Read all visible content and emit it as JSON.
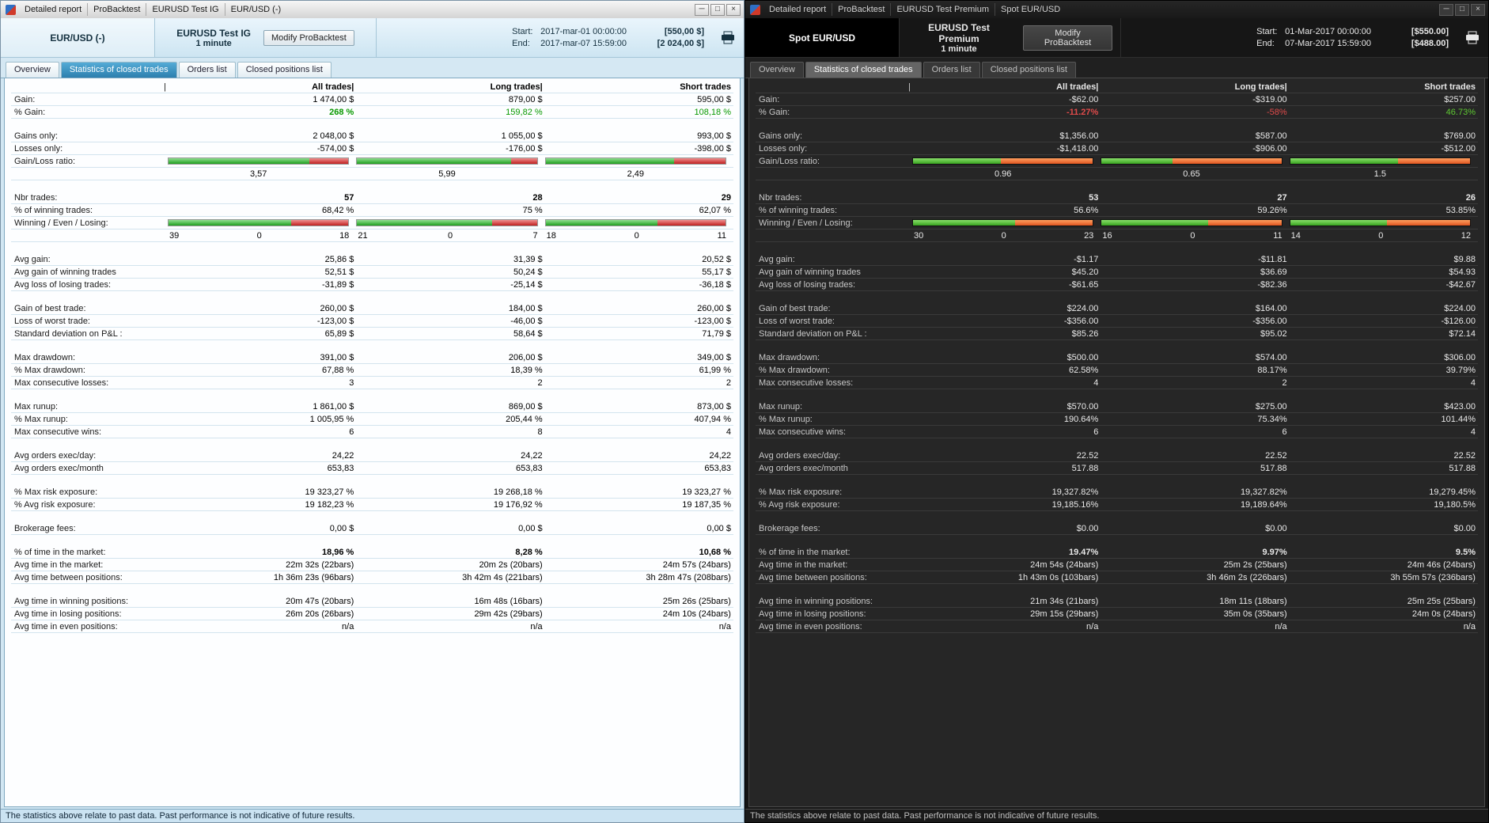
{
  "chrome": {
    "minimize_glyph": "─",
    "maximize_glyph": "□",
    "close_glyph": "×"
  },
  "windows": [
    {
      "theme": "light",
      "titlebar": {
        "items": [
          "Detailed report",
          "ProBacktest",
          "EURUSD Test IG",
          "EUR/USD (-)"
        ]
      },
      "header": {
        "instrument": "EUR/USD (-)",
        "test_name": "EURUSD Test IG",
        "timeframe": "1 minute",
        "modify_button": "Modify ProBacktest",
        "start_label": "Start:",
        "start_date": "2017-mar-01 00:00:00",
        "start_amount": "[550,00 $]",
        "end_label": "End:",
        "end_date": "2017-mar-07 15:59:00",
        "end_amount": "[2 024,00 $]"
      },
      "tabs": [
        {
          "label": "Overview",
          "active": false
        },
        {
          "label": "Statistics of closed trades",
          "active": true
        },
        {
          "label": "Orders list",
          "active": false
        },
        {
          "label": "Closed positions list",
          "active": false
        }
      ],
      "table": {
        "pipe": "|",
        "columns": [
          "All trades|",
          "Long trades|",
          "Short trades"
        ],
        "rows": [
          {
            "l": "Gain:",
            "v": [
              "1 474,00 $",
              "879,00 $",
              "595,00 $"
            ]
          },
          {
            "l": "% Gain:",
            "v": [
              "268 %",
              "159,82 %",
              "108,18 %"
            ],
            "c": [
              "pos b",
              "pos",
              "pos"
            ]
          },
          {
            "t": "gap"
          },
          {
            "l": "Gains only:",
            "v": [
              "2 048,00 $",
              "1 055,00 $",
              "993,00 $"
            ]
          },
          {
            "l": "Losses only:",
            "v": [
              "-574,00 $",
              "-176,00 $",
              "-398,00 $"
            ]
          },
          {
            "l": "Gain/Loss ratio:",
            "t": "ratio",
            "f": [
              0.781,
              0.857,
              0.713
            ],
            "v": [
              "3,57",
              "5,99",
              "2,49"
            ]
          },
          {
            "t": "gap"
          },
          {
            "l": "Nbr trades:",
            "v": [
              "57",
              "28",
              "29"
            ],
            "b": true
          },
          {
            "l": "% of winning trades:",
            "v": [
              "68,42 %",
              "75 %",
              "62,07 %"
            ]
          },
          {
            "l": "Winning / Even / Losing:",
            "t": "wel",
            "f": [
              0.684,
              0.75,
              0.621
            ],
            "w": [
              [
                "39",
                "0",
                "18"
              ],
              [
                "21",
                "0",
                "7"
              ],
              [
                "18",
                "0",
                "11"
              ]
            ]
          },
          {
            "t": "gap"
          },
          {
            "l": "Avg gain:",
            "v": [
              "25,86 $",
              "31,39 $",
              "20,52 $"
            ]
          },
          {
            "l": "Avg gain of winning trades",
            "v": [
              "52,51 $",
              "50,24 $",
              "55,17 $"
            ]
          },
          {
            "l": "Avg loss of losing trades:",
            "v": [
              "-31,89 $",
              "-25,14 $",
              "-36,18 $"
            ]
          },
          {
            "t": "gap"
          },
          {
            "l": "Gain of best trade:",
            "v": [
              "260,00 $",
              "184,00 $",
              "260,00 $"
            ]
          },
          {
            "l": "Loss of worst trade:",
            "v": [
              "-123,00 $",
              "-46,00 $",
              "-123,00 $"
            ]
          },
          {
            "l": "Standard deviation on P&L :",
            "v": [
              "65,89 $",
              "58,64 $",
              "71,79 $"
            ]
          },
          {
            "t": "gap"
          },
          {
            "l": "Max drawdown:",
            "v": [
              "391,00 $",
              "206,00 $",
              "349,00 $"
            ]
          },
          {
            "l": "% Max drawdown:",
            "v": [
              "67,88 %",
              "18,39 %",
              "61,99 %"
            ]
          },
          {
            "l": "Max consecutive losses:",
            "v": [
              "3",
              "2",
              "2"
            ]
          },
          {
            "t": "gap"
          },
          {
            "l": "Max runup:",
            "v": [
              "1 861,00 $",
              "869,00 $",
              "873,00 $"
            ]
          },
          {
            "l": "% Max runup:",
            "v": [
              "1 005,95 %",
              "205,44 %",
              "407,94 %"
            ]
          },
          {
            "l": "Max consecutive wins:",
            "v": [
              "6",
              "8",
              "4"
            ]
          },
          {
            "t": "gap"
          },
          {
            "l": "Avg orders exec/day:",
            "v": [
              "24,22",
              "24,22",
              "24,22"
            ]
          },
          {
            "l": "Avg orders exec/month",
            "v": [
              "653,83",
              "653,83",
              "653,83"
            ]
          },
          {
            "t": "gap"
          },
          {
            "l": "% Max risk exposure:",
            "v": [
              "19 323,27 %",
              "19 268,18 %",
              "19 323,27 %"
            ]
          },
          {
            "l": "% Avg risk exposure:",
            "v": [
              "19 182,23 %",
              "19 176,92 %",
              "19 187,35 %"
            ]
          },
          {
            "t": "gap"
          },
          {
            "l": "Brokerage fees:",
            "v": [
              "0,00 $",
              "0,00 $",
              "0,00 $"
            ]
          },
          {
            "t": "gap"
          },
          {
            "l": "% of time in the market:",
            "v": [
              "18,96 %",
              "8,28 %",
              "10,68 %"
            ],
            "b": true
          },
          {
            "l": "Avg time in the market:",
            "v": [
              "22m 32s (22bars)",
              "20m 2s (20bars)",
              "24m 57s (24bars)"
            ]
          },
          {
            "l": "Avg time between positions:",
            "v": [
              "1h 36m 23s (96bars)",
              "3h 42m 4s (221bars)",
              "3h 28m 47s (208bars)"
            ]
          },
          {
            "t": "gap"
          },
          {
            "l": "Avg time in winning positions:",
            "v": [
              "20m 47s (20bars)",
              "16m 48s (16bars)",
              "25m 26s (25bars)"
            ]
          },
          {
            "l": "Avg time in losing positions:",
            "v": [
              "26m 20s (26bars)",
              "29m 42s (29bars)",
              "24m 10s (24bars)"
            ]
          },
          {
            "l": "Avg time in even positions:",
            "v": [
              "n/a",
              "n/a",
              "n/a"
            ]
          }
        ]
      },
      "footer": "The statistics above relate to past data. Past performance is not indicative of future results."
    },
    {
      "theme": "dark",
      "titlebar": {
        "items": [
          "Detailed report",
          "ProBacktest",
          "EURUSD Test Premium",
          "Spot EUR/USD"
        ]
      },
      "header": {
        "instrument": "Spot EUR/USD",
        "test_name": "EURUSD Test Premium",
        "timeframe": "1 minute",
        "modify_button": "Modify ProBacktest",
        "start_label": "Start:",
        "start_date": "01-Mar-2017 00:00:00",
        "start_amount": "[$550.00]",
        "end_label": "End:",
        "end_date": "07-Mar-2017 15:59:00",
        "end_amount": "[$488.00]"
      },
      "tabs": [
        {
          "label": "Overview",
          "active": false
        },
        {
          "label": "Statistics of closed trades",
          "active": true
        },
        {
          "label": "Orders list",
          "active": false
        },
        {
          "label": "Closed positions list",
          "active": false
        }
      ],
      "table": {
        "pipe": "|",
        "columns": [
          "All trades|",
          "Long trades|",
          "Short trades"
        ],
        "rows": [
          {
            "l": "Gain:",
            "v": [
              "-$62.00",
              "-$319.00",
              "$257.00"
            ]
          },
          {
            "l": "% Gain:",
            "v": [
              "-11.27%",
              "-58%",
              "46.73%"
            ],
            "c": [
              "neg b",
              "neg",
              "pos"
            ]
          },
          {
            "t": "gap"
          },
          {
            "l": "Gains only:",
            "v": [
              "$1,356.00",
              "$587.00",
              "$769.00"
            ]
          },
          {
            "l": "Losses only:",
            "v": [
              "-$1,418.00",
              "-$906.00",
              "-$512.00"
            ]
          },
          {
            "l": "Gain/Loss ratio:",
            "t": "ratio",
            "f": [
              0.49,
              0.394,
              0.6
            ],
            "v": [
              "0.96",
              "0.65",
              "1.5"
            ]
          },
          {
            "t": "gap"
          },
          {
            "l": "Nbr trades:",
            "v": [
              "53",
              "27",
              "26"
            ],
            "b": true
          },
          {
            "l": "% of winning trades:",
            "v": [
              "56.6%",
              "59.26%",
              "53.85%"
            ]
          },
          {
            "l": "Winning / Even / Losing:",
            "t": "wel",
            "f": [
              0.566,
              0.593,
              0.538
            ],
            "w": [
              [
                "30",
                "0",
                "23"
              ],
              [
                "16",
                "0",
                "11"
              ],
              [
                "14",
                "0",
                "12"
              ]
            ]
          },
          {
            "t": "gap"
          },
          {
            "l": "Avg gain:",
            "v": [
              "-$1.17",
              "-$11.81",
              "$9.88"
            ]
          },
          {
            "l": "Avg gain of winning trades",
            "v": [
              "$45.20",
              "$36.69",
              "$54.93"
            ]
          },
          {
            "l": "Avg loss of losing trades:",
            "v": [
              "-$61.65",
              "-$82.36",
              "-$42.67"
            ]
          },
          {
            "t": "gap"
          },
          {
            "l": "Gain of best trade:",
            "v": [
              "$224.00",
              "$164.00",
              "$224.00"
            ]
          },
          {
            "l": "Loss of worst trade:",
            "v": [
              "-$356.00",
              "-$356.00",
              "-$126.00"
            ]
          },
          {
            "l": "Standard deviation on P&L :",
            "v": [
              "$85.26",
              "$95.02",
              "$72.14"
            ]
          },
          {
            "t": "gap"
          },
          {
            "l": "Max drawdown:",
            "v": [
              "$500.00",
              "$574.00",
              "$306.00"
            ]
          },
          {
            "l": "% Max drawdown:",
            "v": [
              "62.58%",
              "88.17%",
              "39.79%"
            ]
          },
          {
            "l": "Max consecutive losses:",
            "v": [
              "4",
              "2",
              "4"
            ]
          },
          {
            "t": "gap"
          },
          {
            "l": "Max runup:",
            "v": [
              "$570.00",
              "$275.00",
              "$423.00"
            ]
          },
          {
            "l": "% Max runup:",
            "v": [
              "190.64%",
              "75.34%",
              "101.44%"
            ]
          },
          {
            "l": "Max consecutive wins:",
            "v": [
              "6",
              "6",
              "4"
            ]
          },
          {
            "t": "gap"
          },
          {
            "l": "Avg orders exec/day:",
            "v": [
              "22.52",
              "22.52",
              "22.52"
            ]
          },
          {
            "l": "Avg orders exec/month",
            "v": [
              "517.88",
              "517.88",
              "517.88"
            ]
          },
          {
            "t": "gap"
          },
          {
            "l": "% Max risk exposure:",
            "v": [
              "19,327.82%",
              "19,327.82%",
              "19,279.45%"
            ]
          },
          {
            "l": "% Avg risk exposure:",
            "v": [
              "19,185.16%",
              "19,189.64%",
              "19,180.5%"
            ]
          },
          {
            "t": "gap"
          },
          {
            "l": "Brokerage fees:",
            "v": [
              "$0.00",
              "$0.00",
              "$0.00"
            ]
          },
          {
            "t": "gap"
          },
          {
            "l": "% of time in the market:",
            "v": [
              "19.47%",
              "9.97%",
              "9.5%"
            ],
            "b": true
          },
          {
            "l": "Avg time in the market:",
            "v": [
              "24m 54s (24bars)",
              "25m 2s (25bars)",
              "24m 46s (24bars)"
            ]
          },
          {
            "l": "Avg time between positions:",
            "v": [
              "1h 43m 0s (103bars)",
              "3h 46m 2s (226bars)",
              "3h 55m 57s (236bars)"
            ]
          },
          {
            "t": "gap"
          },
          {
            "l": "Avg time in winning positions:",
            "v": [
              "21m 34s (21bars)",
              "18m 11s (18bars)",
              "25m 25s (25bars)"
            ]
          },
          {
            "l": "Avg time in losing positions:",
            "v": [
              "29m 15s (29bars)",
              "35m 0s (35bars)",
              "24m 0s (24bars)"
            ]
          },
          {
            "l": "Avg time in even positions:",
            "v": [
              "n/a",
              "n/a",
              "n/a"
            ]
          }
        ]
      },
      "footer": "The statistics above relate to past data. Past performance is not indicative of future results."
    }
  ]
}
